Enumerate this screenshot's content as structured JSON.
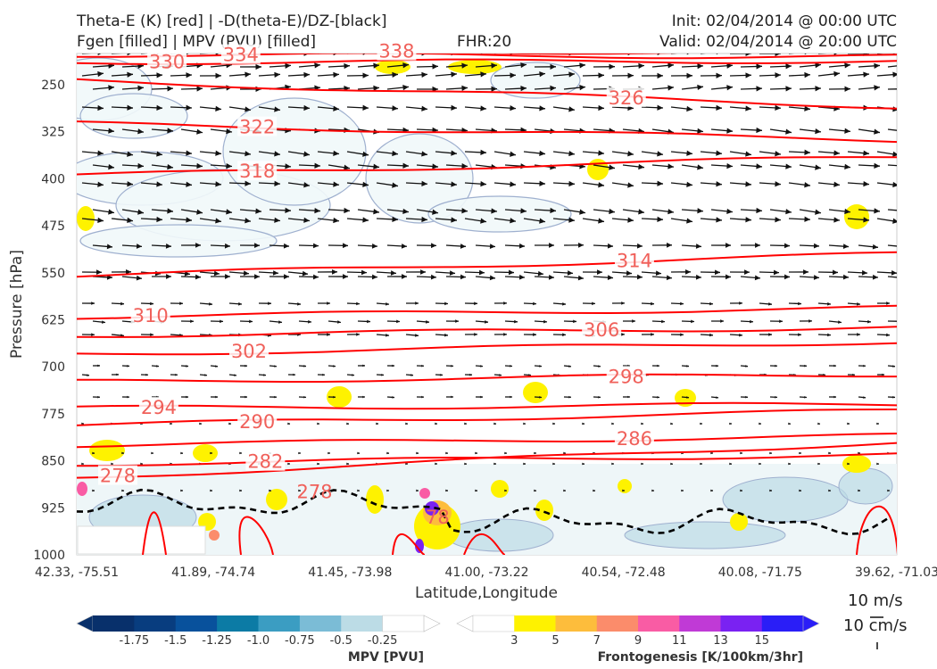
{
  "header": {
    "title_left_1": "Theta-E (K) [red] | -D(theta-E)/DZ-[black]",
    "title_left_2": "Fgen [filled] | MPV (PVU) [filled]",
    "fhr": "FHR:20",
    "init": "Init: 02/04/2014 @ 00:00 UTC",
    "valid": "Valid: 02/04/2014 @ 20:00 UTC"
  },
  "chart_data": {
    "type": "cross-section",
    "title": "Theta-E (K) [red] | -D(theta-E)/DZ-[black] / Fgen [filled] | MPV (PVU) [filled]",
    "xlabel": "Latitude,Longitude",
    "ylabel": "Pressure [hPa]",
    "x_ticks": [
      "42.33, -75.51",
      "41.89, -74.74",
      "41.45, -73.98",
      "41.00, -73.22",
      "40.54, -72.48",
      "40.08, -71.75",
      "39.62, -71.03"
    ],
    "y_ticks": [
      250,
      325,
      400,
      475,
      550,
      625,
      700,
      775,
      850,
      925,
      1000
    ],
    "ylim": [
      1000,
      190
    ],
    "theta_e_contours": [
      {
        "label": "278",
        "y_left": 877,
        "y_right": 820,
        "label_x": 0.05
      },
      {
        "label": "282",
        "y_left": 855,
        "y_right": 840,
        "label_x": 0.23
      },
      {
        "label": "286",
        "y_left": 825,
        "y_right": 810,
        "label_x": 0.68
      },
      {
        "label": "290",
        "y_left": 793,
        "y_right": 770,
        "label_x": 0.22
      },
      {
        "label": "294",
        "y_left": 766,
        "y_right": 760,
        "label_x": 0.1
      },
      {
        "label": "298",
        "y_left": 724,
        "y_right": 712,
        "label_x": 0.67
      },
      {
        "label": "302",
        "y_left": 680,
        "y_right": 660,
        "label_x": 0.21
      },
      {
        "label": "306",
        "y_left": 650,
        "y_right": 637,
        "label_x": 0.64
      },
      {
        "label": "310",
        "y_left": 620,
        "y_right": 606,
        "label_x": 0.09
      },
      {
        "label": "314",
        "y_left": 555,
        "y_right": 520,
        "label_x": 0.68
      },
      {
        "label": "318",
        "y_left": 395,
        "y_right": 365,
        "label_x": 0.22
      },
      {
        "label": "322",
        "y_left": 312,
        "y_right": 338,
        "label_x": 0.22
      },
      {
        "label": "326",
        "y_left": 243,
        "y_right": 285,
        "label_x": 0.67
      },
      {
        "label": "330",
        "y_left": 214,
        "y_right": 212,
        "label_x": 0.11
      },
      {
        "label": "334",
        "y_left": 202,
        "y_right": 205,
        "label_x": 0.2
      },
      {
        "label": "338",
        "y_left": 196,
        "y_right": 198,
        "label_x": 0.39
      }
    ],
    "lower_labels": [
      {
        "label": "278",
        "x": 0.29,
        "p": 900
      },
      {
        "label": "78",
        "x": 0.44,
        "p": 940
      }
    ],
    "wind_vector_scale": {
      "u_label": "10 m/s",
      "w_label": "10 cm/s"
    }
  },
  "colorbars": {
    "mpv": {
      "title": "MPV [PVU]",
      "ticks": [
        "-1.75",
        "-1.5",
        "-1.25",
        "-1.0",
        "-0.75",
        "-0.5",
        "-0.25"
      ],
      "colors": [
        "#08306b",
        "#083d7f",
        "#08519c",
        "#0c7ba5",
        "#3b9dc2",
        "#7bbcd6",
        "#bcdce6",
        "#ffffff"
      ]
    },
    "fgen": {
      "title": "Frontogenesis [K/100km/3hr]",
      "ticks": [
        "3",
        "5",
        "7",
        "9",
        "11",
        "13",
        "15"
      ],
      "colors": [
        "#ffffff",
        "#fef200",
        "#fdbd3c",
        "#fb8c6b",
        "#f95ca4",
        "#c03ad6",
        "#7a22f2",
        "#2a1ef7"
      ]
    }
  },
  "colors": {
    "theta_e": "#ff0000",
    "contour_label": "#f0605a",
    "dtheta_dz": "#000000",
    "mpv_outline": "#9fb0cf",
    "axis": "#cccccc"
  }
}
